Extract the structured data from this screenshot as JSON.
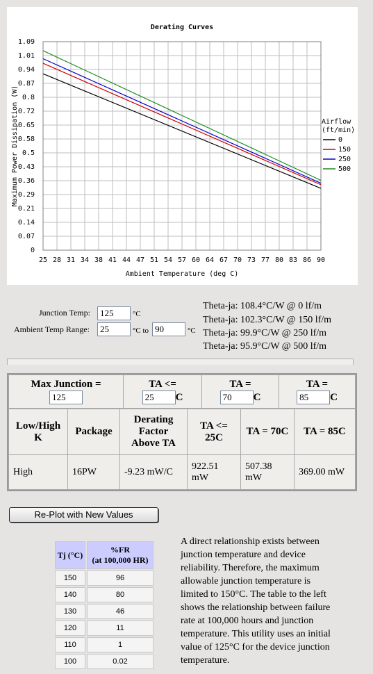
{
  "chart_data": {
    "type": "line",
    "title": "Derating Curves",
    "xlabel": "Ambient Temperature (deg C)",
    "ylabel": "Maximum Power Dissipation (W)",
    "x_ticks": [
      "25",
      "28",
      "31",
      "34",
      "38",
      "41",
      "44",
      "47",
      "51",
      "54",
      "57",
      "60",
      "64",
      "67",
      "70",
      "73",
      "77",
      "80",
      "83",
      "86",
      "90"
    ],
    "y_ticks": [
      "0",
      "0.07",
      "0.14",
      "0.21",
      "0.29",
      "0.36",
      "0.43",
      "0.5",
      "0.58",
      "0.65",
      "0.72",
      "0.8",
      "0.87",
      "0.94",
      "1.01",
      "1.09"
    ],
    "xlim": [
      25,
      90
    ],
    "ylim": [
      0,
      1.09
    ],
    "grid": true,
    "legend_title": "Airflow (ft/min)",
    "legend_position": "right",
    "series": [
      {
        "name": "0",
        "color": "#000000",
        "x": [
          25,
          90
        ],
        "values": [
          0.922,
          0.323
        ]
      },
      {
        "name": "150",
        "color": "#cc0000",
        "x": [
          25,
          90
        ],
        "values": [
          0.977,
          0.342
        ]
      },
      {
        "name": "250",
        "color": "#0000cc",
        "x": [
          25,
          90
        ],
        "values": [
          1.001,
          0.35
        ]
      },
      {
        "name": "500",
        "color": "#228b22",
        "x": [
          25,
          90
        ],
        "values": [
          1.043,
          0.365
        ]
      }
    ]
  },
  "inputs": {
    "junction_label": "Junction Temp:",
    "junction_value": "125",
    "junction_unit": "°C",
    "range_label": "Ambient Temp Range:",
    "range_from": "25",
    "range_to_label": "°C to",
    "range_to": "90",
    "range_unit": "°C",
    "theta": [
      "Theta-ja: 108.4°C/W @ 0 lf/m",
      "Theta-ja: 102.3°C/W @ 150 lf/m",
      "Theta-ja: 99.9°C/W @ 250 lf/m",
      "Theta-ja: 95.9°C/W @ 500 lf/m"
    ]
  },
  "results": {
    "max_junction_label": "Max Junction =",
    "max_junction_value": "125",
    "ta1_label": "TA <=",
    "ta1_value": "25",
    "ta2_label": "TA =",
    "ta2_value": "70",
    "ta3_label": "TA =",
    "ta3_value": "85",
    "unit": "C",
    "headers": [
      "Low/High K",
      "Package",
      "Derating Factor Above TA",
      "TA <= 25C",
      "TA = 70C",
      "TA = 85C"
    ],
    "row": [
      "High",
      "16PW",
      "-9.23 mW/C",
      "922.51 mW",
      "507.38 mW",
      "369.00 mW"
    ]
  },
  "replot_label": "Re-Plot with New Values",
  "failure_table": {
    "header_tj": "Tj (°C)",
    "header_fr": "%FR",
    "header_fr_sub": "(at 100,000 HR)",
    "rows": [
      {
        "tj": "150",
        "fr": "96"
      },
      {
        "tj": "140",
        "fr": "80"
      },
      {
        "tj": "130",
        "fr": "46"
      },
      {
        "tj": "120",
        "fr": "11"
      },
      {
        "tj": "110",
        "fr": "1"
      },
      {
        "tj": "100",
        "fr": "0.02"
      }
    ]
  },
  "description": "A direct relationship exists between junction temperature and device reliability. Therefore, the maximum allowable junction temperature is limited to 150°C. The table to the left shows the relationship between failure rate at 100,000 hours and junction temperature. This utility uses an initial value of 125°C for the device junction temperature."
}
